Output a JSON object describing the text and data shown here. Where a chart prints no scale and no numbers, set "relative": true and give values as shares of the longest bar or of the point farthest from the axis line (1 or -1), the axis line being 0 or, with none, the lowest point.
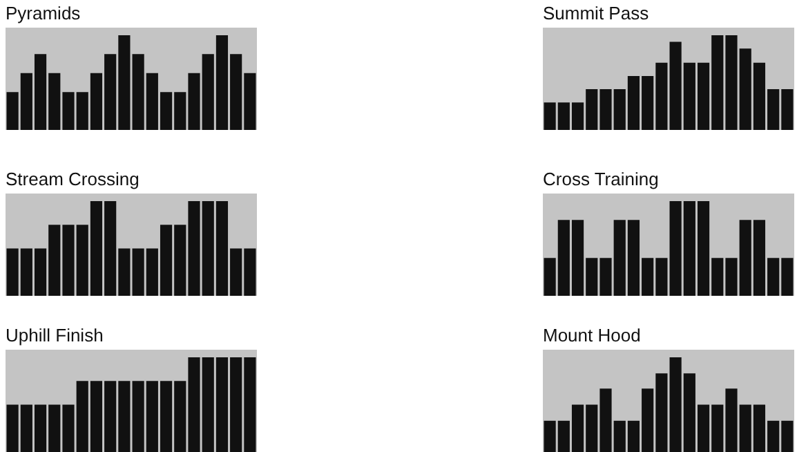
{
  "chart_data": [
    {
      "type": "bar",
      "title": "Pyramids",
      "relative": true,
      "categories": [
        null,
        null,
        null,
        null,
        null,
        null,
        null,
        null,
        null,
        null,
        null,
        null,
        null,
        null,
        null,
        null,
        null,
        null
      ],
      "color": "#111111",
      "values": [
        0.4,
        0.6,
        0.8,
        0.6,
        0.4,
        0.4,
        0.6,
        0.8,
        1,
        0.8,
        0.6,
        0.4,
        0.4,
        0.6,
        0.8,
        1,
        0.8,
        0.6
      ]
    },
    {
      "type": "bar",
      "title": "Summit Pass",
      "relative": true,
      "categories": [
        null,
        null,
        null,
        null,
        null,
        null,
        null,
        null,
        null,
        null,
        null,
        null,
        null,
        null,
        null,
        null,
        null,
        null
      ],
      "color": "#111111",
      "values": [
        0.29,
        0.29,
        0.29,
        0.43,
        0.43,
        0.43,
        0.57,
        0.57,
        0.71,
        0.93,
        0.71,
        0.71,
        1,
        1,
        0.86,
        0.71,
        0.43,
        0.43
      ]
    },
    {
      "type": "bar",
      "title": "Stream Crossing",
      "relative": true,
      "categories": [
        null,
        null,
        null,
        null,
        null,
        null,
        null,
        null,
        null,
        null,
        null,
        null,
        null,
        null,
        null,
        null,
        null,
        null
      ],
      "color": "#111111",
      "values": [
        0.5,
        0.5,
        0.5,
        0.75,
        0.75,
        0.75,
        1,
        1,
        0.5,
        0.5,
        0.5,
        0.75,
        0.75,
        1,
        1,
        1,
        0.5,
        0.5
      ]
    },
    {
      "type": "bar",
      "title": "Cross Training",
      "relative": true,
      "categories": [
        null,
        null,
        null,
        null,
        null,
        null,
        null,
        null,
        null,
        null,
        null,
        null,
        null,
        null,
        null,
        null,
        null,
        null
      ],
      "color": "#111111",
      "values": [
        0.4,
        0.8,
        0.8,
        0.4,
        0.4,
        0.8,
        0.8,
        0.4,
        0.4,
        1,
        1,
        1,
        0.4,
        0.4,
        0.8,
        0.8,
        0.4,
        0.4
      ]
    },
    {
      "type": "bar",
      "title": "Uphill Finish",
      "relative": true,
      "categories": [
        null,
        null,
        null,
        null,
        null,
        null,
        null,
        null,
        null,
        null,
        null,
        null,
        null,
        null,
        null,
        null,
        null,
        null
      ],
      "color": "#111111",
      "values": [
        0.5,
        0.5,
        0.5,
        0.5,
        0.5,
        0.75,
        0.75,
        0.75,
        0.75,
        0.75,
        0.75,
        0.75,
        0.75,
        1,
        1,
        1,
        1,
        1
      ]
    },
    {
      "type": "bar",
      "title": "Mount Hood",
      "relative": true,
      "categories": [
        null,
        null,
        null,
        null,
        null,
        null,
        null,
        null,
        null,
        null,
        null,
        null,
        null,
        null,
        null,
        null,
        null,
        null
      ],
      "color": "#111111",
      "values": [
        0.33,
        0.33,
        0.5,
        0.5,
        0.67,
        0.33,
        0.33,
        0.67,
        0.83,
        1,
        0.83,
        0.5,
        0.5,
        0.67,
        0.5,
        0.5,
        0.33,
        0.33
      ]
    }
  ]
}
